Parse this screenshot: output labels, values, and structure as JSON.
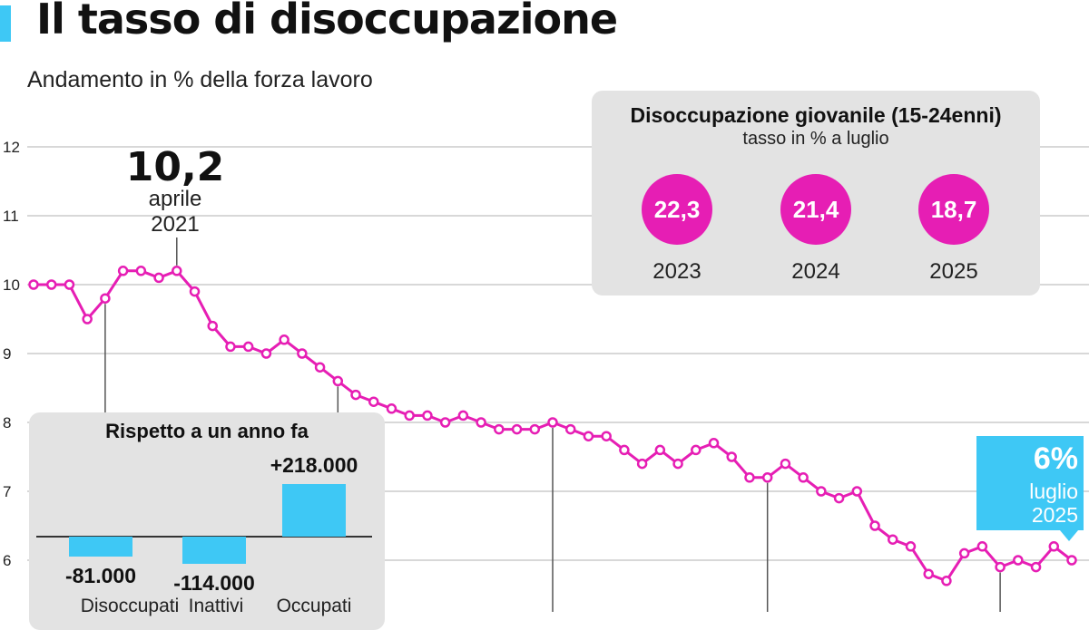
{
  "header": {
    "title": "Il tasso di disoccupazione",
    "subtitle": "Andamento in % della forza lavoro"
  },
  "colors": {
    "line": "#e61eb4",
    "accent": "#3ec8f5",
    "panel": "#e3e3e3",
    "grid": "#cccccc"
  },
  "chart_data": {
    "type": "line",
    "ylim": [
      5.5,
      12
    ],
    "yticks": [
      "12",
      "11",
      "10",
      "9",
      "8",
      "7",
      "6"
    ],
    "grid": true,
    "series": [
      {
        "values": [
          10.0,
          10.0,
          10.0,
          9.5,
          9.8,
          10.2,
          10.2,
          10.1,
          10.2,
          9.9,
          9.4,
          9.1,
          9.1,
          9.0,
          9.2,
          9.0,
          8.8,
          8.6,
          8.4,
          8.3,
          8.2,
          8.1,
          8.1,
          8.0,
          8.1,
          8.0,
          7.9,
          7.9,
          7.9,
          8.0,
          7.9,
          7.8,
          7.8,
          7.6,
          7.4,
          7.6,
          7.4,
          7.6,
          7.7,
          7.5,
          7.2,
          7.2,
          7.4,
          7.2,
          7.0,
          6.9,
          7.0,
          6.5,
          6.3,
          6.2,
          5.8,
          5.7,
          6.1,
          6.2,
          5.9,
          6.0,
          5.9,
          6.2,
          6.0
        ]
      }
    ],
    "annotations": {
      "peak": {
        "value": "10,2",
        "month": "aprile",
        "year": "2021"
      },
      "latest": {
        "value": "6%",
        "month": "luglio",
        "year": "2025"
      }
    }
  },
  "youth_panel": {
    "title": "Disoccupazione giovanile (15-24enni)",
    "subtitle": "tasso in % a luglio",
    "items": [
      {
        "value": "22,3",
        "year": "2023"
      },
      {
        "value": "21,4",
        "year": "2024"
      },
      {
        "value": "18,7",
        "year": "2025"
      }
    ]
  },
  "yoy_panel": {
    "title": "Rispetto a un anno fa",
    "bars": [
      {
        "label": "Disoccupati",
        "value_label": "-81.000",
        "value": -81000
      },
      {
        "label": "Inattivi",
        "value_label": "-114.000",
        "value": -114000
      },
      {
        "label": "Occupati",
        "value_label": "+218.000",
        "value": 218000
      }
    ]
  }
}
